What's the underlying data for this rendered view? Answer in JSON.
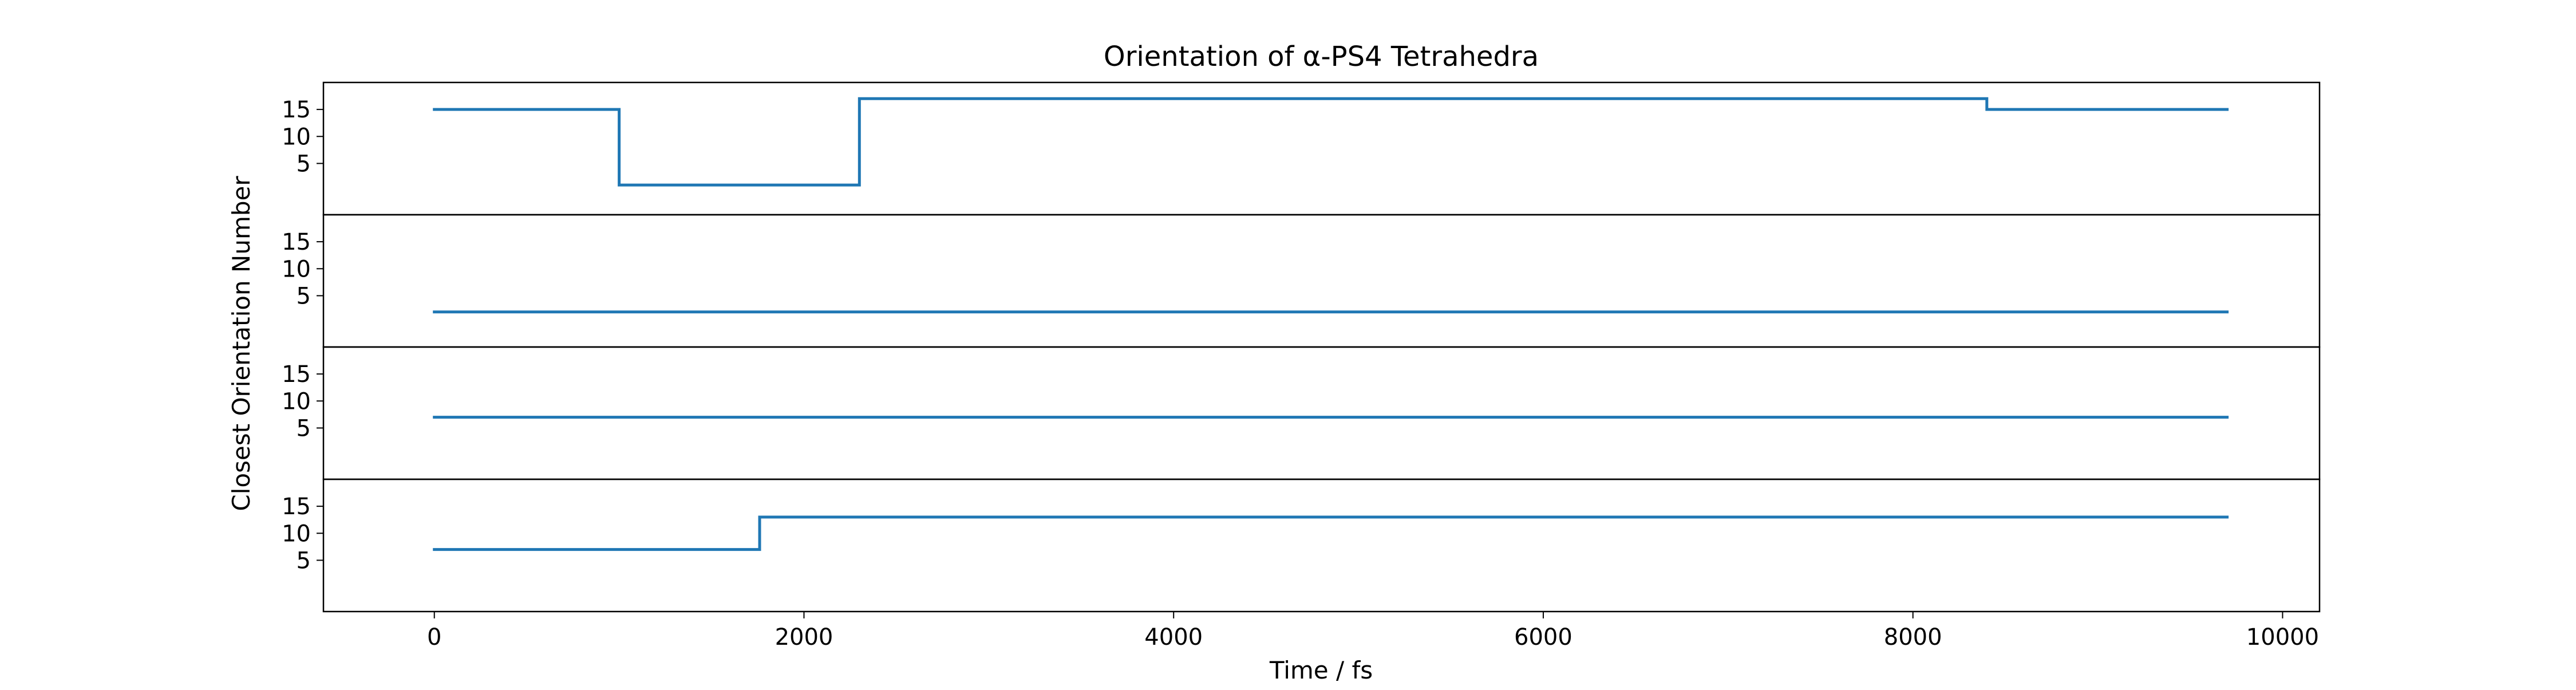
{
  "chart_data": {
    "type": "line",
    "title": "Orientation of α-PS4 Tetrahedra",
    "xlabel": "Time / fs",
    "ylabel": "Closest Orientation Number",
    "xlim": [
      -600,
      10200
    ],
    "ylim": [
      -4.5,
      20.0
    ],
    "x_ticks": [
      0,
      2000,
      4000,
      6000,
      8000,
      10000
    ],
    "y_ticks": [
      5,
      10,
      15
    ],
    "grid": false,
    "line_color": "#1f77b4",
    "step": "post",
    "subplots": [
      {
        "points": [
          [
            0,
            15
          ],
          [
            1000,
            15
          ],
          [
            1000,
            1
          ],
          [
            2300,
            1
          ],
          [
            2300,
            17
          ],
          [
            8400,
            17
          ],
          [
            8400,
            15
          ],
          [
            9700,
            15
          ]
        ]
      },
      {
        "points": [
          [
            0,
            2
          ],
          [
            9700,
            2
          ]
        ]
      },
      {
        "points": [
          [
            0,
            7
          ],
          [
            9700,
            7
          ]
        ]
      },
      {
        "points": [
          [
            0,
            7
          ],
          [
            1760,
            7
          ],
          [
            1760,
            13
          ],
          [
            9700,
            13
          ]
        ]
      }
    ]
  }
}
